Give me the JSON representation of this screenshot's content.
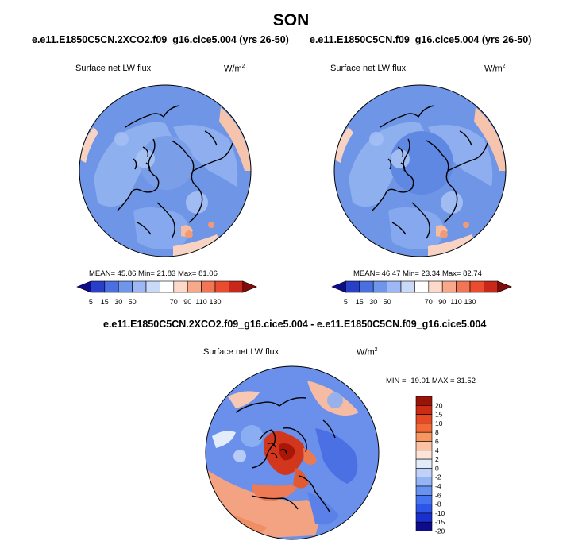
{
  "title": "SON",
  "colors": {
    "abs_scale": [
      "#0c0c8c",
      "#2a3fc8",
      "#4a6fe0",
      "#7096ec",
      "#9db8f4",
      "#c8daf8",
      "#ffffff",
      "#fcd9c8",
      "#f7a98a",
      "#f27656",
      "#e94c2e",
      "#c8281a",
      "#820c0c"
    ],
    "diff_scale": [
      "#0c0c8c",
      "#1a2fd0",
      "#2d55e8",
      "#4574ee",
      "#6892f2",
      "#94b4f6",
      "#c0d2f9",
      "#e2ecfb",
      "#fde4d8",
      "#fbc2a4",
      "#f8965f",
      "#f36a38",
      "#e64a24",
      "#cc2b14",
      "#9a1308"
    ],
    "ocean": "#6f96e6",
    "land": "#96b4f0",
    "coast": "#000000"
  },
  "chart_data": [
    {
      "type": "heatmap",
      "title": "e.e11.E1850C5CN.2XCO2.f09_g16.cice5.004 (yrs 26-50)",
      "variable": "Surface net LW flux",
      "units": "W/m",
      "units_sup": "2",
      "stats_text": "MEAN=  45.86  Min=  21.83  Max=  81.06",
      "mean": 45.86,
      "min": 21.83,
      "max": 81.06,
      "colorbar_labels": [
        "5",
        "15",
        "30",
        "50",
        "70",
        "90",
        "110",
        "130"
      ],
      "colorbar_orientation": "horizontal"
    },
    {
      "type": "heatmap",
      "title": "e.e11.E1850C5CN.f09_g16.cice5.004 (yrs 26-50)",
      "variable": "Surface net LW flux",
      "units": "W/m",
      "units_sup": "2",
      "stats_text": "MEAN=  46.47  Min=  23.34  Max=  82.74",
      "mean": 46.47,
      "min": 23.34,
      "max": 82.74,
      "colorbar_labels": [
        "5",
        "15",
        "30",
        "50",
        "70",
        "90",
        "110",
        "130"
      ],
      "colorbar_orientation": "horizontal"
    },
    {
      "type": "heatmap",
      "title": "e.e11.E1850C5CN.2XCO2.f09_g16.cice5.004 - e.e11.E1850C5CN.f09_g16.cice5.004",
      "variable": "Surface net LW flux",
      "units": "W/m",
      "units_sup": "2",
      "stats_text": "MIN = -19.01 MAX =  31.52",
      "min": -19.01,
      "max": 31.52,
      "colorbar_labels": [
        "20",
        "15",
        "10",
        "8",
        "6",
        "4",
        "2",
        "0",
        "-2",
        "-4",
        "-6",
        "-8",
        "-10",
        "-15",
        "-20"
      ],
      "colorbar_orientation": "vertical"
    }
  ]
}
